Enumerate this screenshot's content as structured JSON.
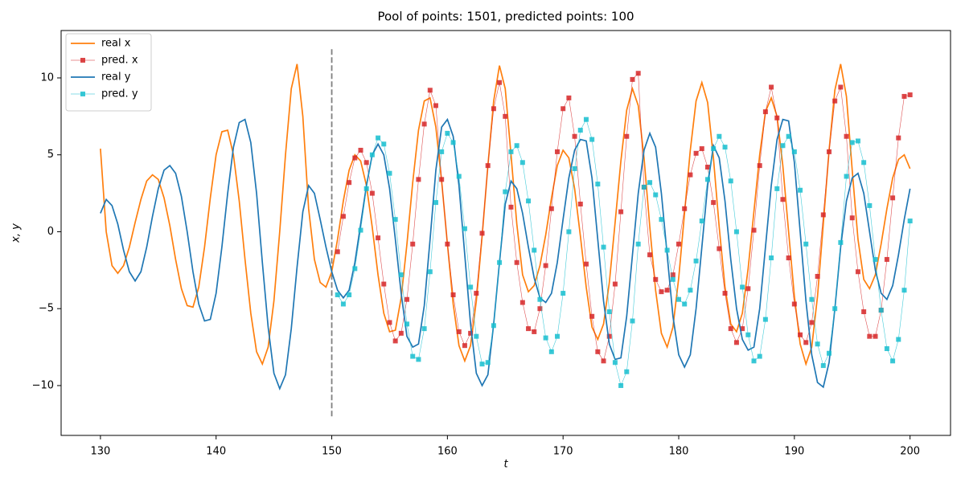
{
  "chart_data": {
    "type": "line",
    "title": "Pool of points: 1501, predicted points: 100",
    "xlabel": "t",
    "ylabel": "x, y",
    "xlim": [
      126.6,
      203.5
    ],
    "ylim": [
      -13.24,
      13.08
    ],
    "xticks": [
      130,
      140,
      150,
      160,
      170,
      180,
      190,
      200
    ],
    "yticks": [
      {
        "value": -10,
        "label": "−10"
      },
      {
        "value": -5,
        "label": "−5"
      },
      0,
      5,
      10
    ],
    "legend": "upper left",
    "vline": {
      "x": 150,
      "ymin": -12,
      "ymax": 12,
      "color": "#808080",
      "style": "dashed"
    },
    "x": [
      130,
      130.5,
      131,
      131.5,
      132,
      132.5,
      133,
      133.5,
      134,
      134.5,
      135,
      135.5,
      136,
      136.5,
      137,
      137.5,
      138,
      138.5,
      139,
      139.5,
      140,
      140.5,
      141,
      141.5,
      142,
      142.5,
      143,
      143.5,
      144,
      144.5,
      145,
      145.5,
      146,
      146.5,
      147,
      147.5,
      148,
      148.5,
      149,
      149.5,
      150,
      150.5,
      151,
      151.5,
      152,
      152.5,
      153,
      153.5,
      154,
      154.5,
      155,
      155.5,
      156,
      156.5,
      157,
      157.5,
      158,
      158.5,
      159,
      159.5,
      160,
      160.5,
      161,
      161.5,
      162,
      162.5,
      163,
      163.5,
      164,
      164.5,
      165,
      165.5,
      166,
      166.5,
      167,
      167.5,
      168,
      168.5,
      169,
      169.5,
      170,
      170.5,
      171,
      171.5,
      172,
      172.5,
      173,
      173.5,
      174,
      174.5,
      175,
      175.5,
      176,
      176.5,
      177,
      177.5,
      178,
      178.5,
      179,
      179.5,
      180,
      180.5,
      181,
      181.5,
      182,
      182.5,
      183,
      183.5,
      184,
      184.5,
      185,
      185.5,
      186,
      186.5,
      187,
      187.5,
      188,
      188.5,
      189,
      189.5,
      190,
      190.5,
      191,
      191.5,
      192,
      192.5,
      193,
      193.5,
      194,
      194.5,
      195,
      195.5,
      196,
      196.5,
      197,
      197.5,
      198,
      198.5,
      199,
      199.5,
      200
    ],
    "series": [
      {
        "name": "real x",
        "color": "#ff7f0e",
        "values": [
          5.4,
          0.0,
          -2.2,
          -2.7,
          -2.2,
          -1.0,
          0.6,
          2.1,
          3.3,
          3.7,
          3.4,
          2.2,
          0.4,
          -1.8,
          -3.7,
          -4.8,
          -4.9,
          -3.6,
          -1.0,
          2.2,
          5.0,
          6.5,
          6.6,
          5.0,
          2.0,
          -1.8,
          -5.3,
          -7.8,
          -8.6,
          -7.5,
          -4.5,
          0.0,
          5.0,
          9.3,
          10.9,
          7.5,
          1.5,
          -1.8,
          -3.3,
          -3.6,
          -2.6,
          -0.5,
          2.0,
          4.0,
          5.0,
          4.6,
          3.0,
          0.3,
          -2.8,
          -5.3,
          -6.5,
          -6.4,
          -4.3,
          -0.8,
          3.2,
          6.6,
          8.5,
          8.7,
          6.8,
          3.3,
          -0.8,
          -4.7,
          -7.4,
          -8.4,
          -7.4,
          -4.5,
          -0.3,
          4.3,
          8.5,
          10.8,
          9.3,
          5.0,
          0.5,
          -2.8,
          -3.9,
          -3.5,
          -2.2,
          -0.2,
          2.2,
          4.3,
          5.3,
          4.8,
          2.8,
          -0.3,
          -3.6,
          -6.2,
          -7.0,
          -6.0,
          -3.3,
          0.6,
          4.6,
          7.9,
          9.3,
          8.2,
          4.8,
          0.3,
          -3.8,
          -6.6,
          -7.5,
          -6.2,
          -3.0,
          1.2,
          5.3,
          8.5,
          9.7,
          8.4,
          4.8,
          0.3,
          -3.6,
          -6.0,
          -6.5,
          -5.3,
          -2.4,
          1.3,
          5.0,
          7.8,
          8.7,
          7.5,
          4.3,
          0.0,
          -4.2,
          -7.3,
          -8.6,
          -7.5,
          -4.2,
          0.5,
          5.3,
          9.2,
          10.9,
          8.8,
          4.0,
          -0.5,
          -3.1,
          -3.7,
          -2.8,
          -0.8,
          1.5,
          3.5,
          4.7,
          5.0,
          4.1
        ]
      },
      {
        "name": "pred. x",
        "color": "#d62728",
        "marker": "square",
        "x": [
          150.5,
          151,
          151.5,
          152,
          152.5,
          153,
          153.5,
          154,
          154.5,
          155,
          155.5,
          156,
          156.5,
          157,
          157.5,
          158,
          158.5,
          159,
          159.5,
          160,
          160.5,
          161,
          161.5,
          162,
          162.5,
          163,
          163.5,
          164,
          164.5,
          165,
          165.5,
          166,
          166.5,
          167,
          167.5,
          168,
          168.5,
          169,
          169.5,
          170,
          170.5,
          171,
          171.5,
          172,
          172.5,
          173,
          173.5,
          174,
          174.5,
          175,
          175.5,
          176,
          176.5,
          177,
          177.5,
          178,
          178.5,
          179,
          179.5,
          180,
          180.5,
          181,
          181.5,
          182,
          182.5,
          183,
          183.5,
          184,
          184.5,
          185,
          185.5,
          186,
          186.5,
          187,
          187.5,
          188,
          188.5,
          189,
          189.5,
          190,
          190.5,
          191,
          191.5,
          192,
          192.5,
          193,
          193.5,
          194,
          194.5,
          195,
          195.5,
          196,
          196.5,
          197,
          197.5,
          198,
          198.5,
          199,
          199.5,
          200
        ],
        "values": [
          -1.3,
          1.0,
          3.2,
          4.8,
          5.3,
          4.5,
          2.5,
          -0.4,
          -3.4,
          -5.9,
          -7.1,
          -6.6,
          -4.4,
          -0.8,
          3.4,
          7.0,
          9.2,
          8.2,
          3.4,
          -0.8,
          -4.1,
          -6.5,
          -7.4,
          -6.6,
          -4.0,
          -0.1,
          4.3,
          8.0,
          9.7,
          7.5,
          1.6,
          -2.0,
          -4.6,
          -6.3,
          -6.5,
          -5.0,
          -2.2,
          1.5,
          5.2,
          8.0,
          8.7,
          6.2,
          1.8,
          -2.1,
          -5.5,
          -7.8,
          -8.4,
          -6.8,
          -3.4,
          1.3,
          6.2,
          9.9,
          10.3,
          2.9,
          -1.5,
          -3.1,
          -3.9,
          -3.8,
          -2.8,
          -0.8,
          1.5,
          3.7,
          5.1,
          5.4,
          4.2,
          1.9,
          -1.1,
          -4.0,
          -6.3,
          -7.2,
          -6.3,
          -3.7,
          0.1,
          4.3,
          7.8,
          9.4,
          7.4,
          2.1,
          -1.7,
          -4.7,
          -6.7,
          -7.2,
          -5.9,
          -2.9,
          1.1,
          5.2,
          8.5,
          9.4,
          6.2,
          0.9,
          -2.6,
          -5.2,
          -6.8,
          -6.8,
          -5.1,
          -1.8,
          2.2,
          6.1,
          8.8,
          8.9
        ]
      },
      {
        "name": "real y",
        "color": "#1f77b4",
        "values": [
          1.2,
          2.1,
          1.7,
          0.5,
          -1.2,
          -2.6,
          -3.2,
          -2.6,
          -1.0,
          1.0,
          2.8,
          4.0,
          4.3,
          3.8,
          2.3,
          0.0,
          -2.6,
          -4.7,
          -5.8,
          -5.7,
          -4.0,
          -1.0,
          2.5,
          5.5,
          7.1,
          7.3,
          5.8,
          2.5,
          -2.0,
          -6.2,
          -9.2,
          -10.2,
          -9.3,
          -6.3,
          -2.3,
          1.3,
          3.0,
          2.5,
          0.8,
          -1.0,
          -2.6,
          -3.8,
          -4.3,
          -3.8,
          -2.0,
          0.5,
          3.0,
          5.0,
          5.7,
          5.0,
          2.8,
          -0.5,
          -4.0,
          -6.8,
          -7.5,
          -7.3,
          -4.8,
          -0.5,
          4.0,
          6.8,
          7.3,
          6.2,
          3.0,
          -1.5,
          -6.0,
          -9.2,
          -10.0,
          -9.3,
          -6.0,
          -2.0,
          1.8,
          3.3,
          2.8,
          1.2,
          -1.0,
          -3.0,
          -4.3,
          -4.6,
          -4.0,
          -2.0,
          0.8,
          3.5,
          5.3,
          6.0,
          5.9,
          3.5,
          -0.5,
          -4.5,
          -7.3,
          -8.3,
          -8.2,
          -5.5,
          -1.5,
          2.5,
          5.3,
          6.4,
          5.5,
          2.5,
          -1.5,
          -5.5,
          -8.0,
          -8.8,
          -8.0,
          -5.0,
          -1.0,
          3.0,
          5.6,
          4.8,
          2.0,
          -1.8,
          -5.0,
          -7.0,
          -7.7,
          -7.5,
          -5.0,
          -1.0,
          3.0,
          6.0,
          7.3,
          7.2,
          4.5,
          0.0,
          -4.5,
          -8.0,
          -9.8,
          -10.1,
          -8.5,
          -5.0,
          -1.0,
          2.0,
          3.5,
          3.8,
          2.5,
          0.0,
          -2.5,
          -4.0,
          -4.4,
          -3.5,
          -1.5,
          0.8,
          2.8
        ]
      },
      {
        "name": "pred. y",
        "color": "#17becf",
        "marker": "square",
        "x": [
          150.5,
          151,
          151.5,
          152,
          152.5,
          153,
          153.5,
          154,
          154.5,
          155,
          155.5,
          156,
          156.5,
          157,
          157.5,
          158,
          158.5,
          159,
          159.5,
          160,
          160.5,
          161,
          161.5,
          162,
          162.5,
          163,
          163.5,
          164,
          164.5,
          165,
          165.5,
          166,
          166.5,
          167,
          167.5,
          168,
          168.5,
          169,
          169.5,
          170,
          170.5,
          171,
          171.5,
          172,
          172.5,
          173,
          173.5,
          174,
          174.5,
          175,
          175.5,
          176,
          176.5,
          177,
          177.5,
          178,
          178.5,
          179,
          179.5,
          180,
          180.5,
          181,
          181.5,
          182,
          182.5,
          183,
          183.5,
          184,
          184.5,
          185,
          185.5,
          186,
          186.5,
          187,
          187.5,
          188,
          188.5,
          189,
          189.5,
          190,
          190.5,
          191,
          191.5,
          192,
          192.5,
          193,
          193.5,
          194,
          194.5,
          195,
          195.5,
          196,
          196.5,
          197,
          197.5,
          198,
          198.5,
          199,
          199.5,
          200
        ],
        "values": [
          -4.1,
          -4.7,
          -4.1,
          -2.4,
          0.1,
          2.8,
          5.0,
          6.1,
          5.7,
          3.8,
          0.8,
          -2.8,
          -6.0,
          -8.1,
          -8.3,
          -6.3,
          -2.6,
          1.9,
          5.2,
          6.4,
          5.8,
          3.6,
          0.2,
          -3.6,
          -6.8,
          -8.6,
          -8.5,
          -6.1,
          -2.0,
          2.6,
          5.2,
          5.6,
          4.5,
          2.0,
          -1.2,
          -4.4,
          -6.9,
          -7.8,
          -6.8,
          -4.0,
          0.0,
          4.1,
          6.6,
          7.3,
          6.0,
          3.1,
          -1.0,
          -5.2,
          -8.5,
          -10.0,
          -9.1,
          -5.8,
          -0.8,
          2.9,
          3.2,
          2.4,
          0.8,
          -1.2,
          -3.1,
          -4.4,
          -4.7,
          -3.8,
          -1.9,
          0.7,
          3.4,
          5.4,
          6.2,
          5.5,
          3.3,
          0.0,
          -3.6,
          -6.7,
          -8.4,
          -8.1,
          -5.7,
          -1.7,
          2.8,
          5.6,
          6.2,
          5.2,
          2.7,
          -0.8,
          -4.4,
          -7.3,
          -8.7,
          -7.9,
          -5.0,
          -0.7,
          3.6,
          5.8,
          5.9,
          4.5,
          1.7,
          -1.8,
          -5.1,
          -7.6,
          -8.4,
          -7.0,
          -3.8,
          0.7
        ]
      }
    ]
  }
}
